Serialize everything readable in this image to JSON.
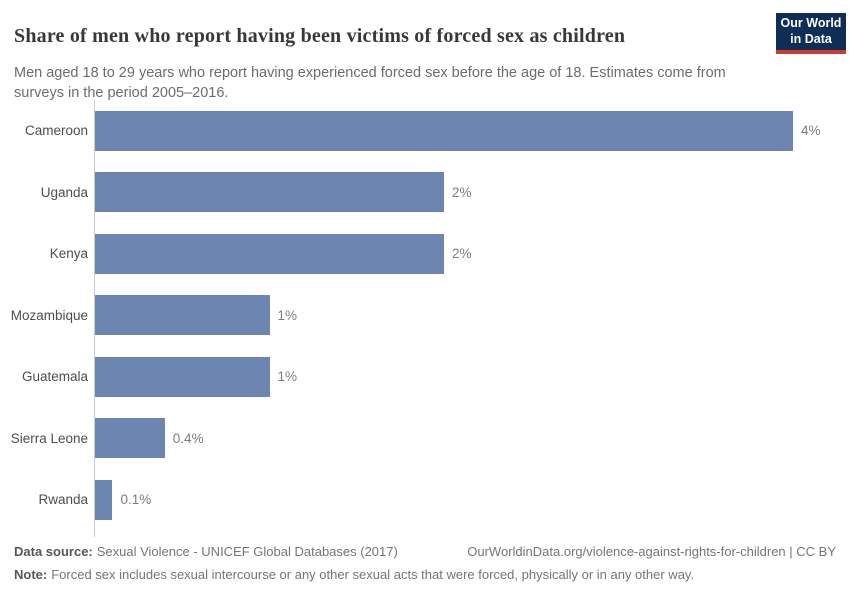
{
  "chart_data": {
    "type": "bar",
    "orientation": "horizontal",
    "title": "Share of men who report having been victims of forced sex as children",
    "subtitle": "Men aged 18 to 29 years who report having experienced forced sex before the age of 18. Estimates come from surveys in the period 2005–2016.",
    "categories": [
      "Cameroon",
      "Uganda",
      "Kenya",
      "Mozambique",
      "Guatemala",
      "Sierra Leone",
      "Rwanda"
    ],
    "values": [
      4,
      2,
      2,
      1,
      1,
      0.4,
      0.1
    ],
    "value_labels": [
      "4%",
      "2%",
      "2%",
      "1%",
      "1%",
      "0.4%",
      "0.1%"
    ],
    "unit": "%",
    "xlim": [
      0,
      4.3
    ],
    "grid": false,
    "legend": false,
    "bar_color": "#6d85b1",
    "axis_color": "#cccccc"
  },
  "branding": {
    "logo_line1": "Our World",
    "logo_line2": "in Data",
    "logo_bg_color": "#0f2e56",
    "logo_accent_color": "#cc3b30"
  },
  "footer": {
    "data_source_label": "Data source:",
    "data_source_text": "Sexual Violence - UNICEF Global Databases (2017)",
    "link_text": "OurWorldinData.org/violence-against-rights-for-children | CC BY",
    "note_label": "Note:",
    "note_text": "Forced sex includes sexual intercourse or any other sexual acts that were forced, physically or in any other way."
  }
}
